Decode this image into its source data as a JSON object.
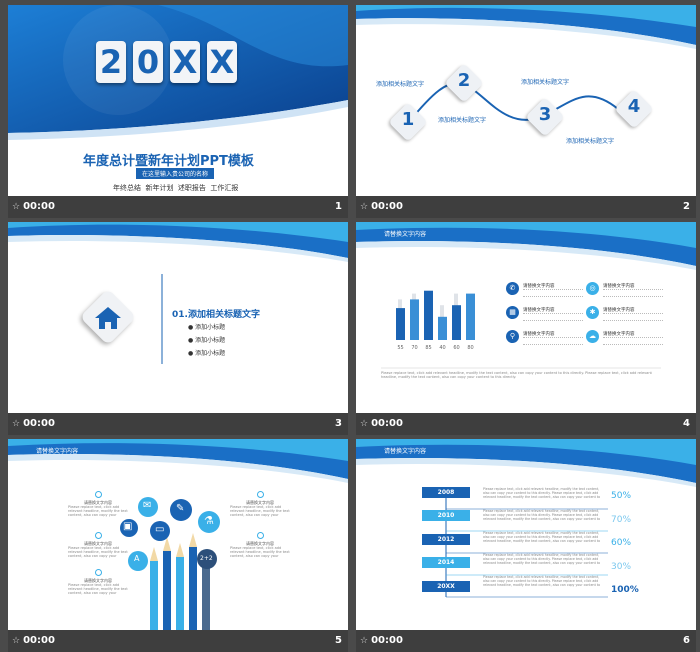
{
  "slides": [
    {
      "number": "1",
      "time": "00:00"
    },
    {
      "number": "2",
      "time": "00:00"
    },
    {
      "number": "3",
      "time": "00:00"
    },
    {
      "number": "4",
      "time": "00:00"
    },
    {
      "number": "5",
      "time": "00:00"
    },
    {
      "number": "6",
      "time": "00:00"
    }
  ],
  "s1": {
    "digits": [
      "2",
      "0",
      "X",
      "X"
    ],
    "title": "年度总计暨新年计划PPT模板",
    "company": "在这里输入贵公司的名称",
    "subtitle": "年终总结  新年计划  述职报告  工作汇报"
  },
  "s2": {
    "steps": [
      "1",
      "2",
      "3",
      "4"
    ],
    "labels": [
      "添加相关标题文字",
      "添加相关标题文字",
      "添加相关标题文字",
      "添加相关标题文字"
    ]
  },
  "s3": {
    "heading": "01.添加相关标题文字",
    "items": [
      "添加小标题",
      "添加小标题",
      "添加小标题"
    ]
  },
  "s4": {
    "title": "请替换文字内容",
    "item_label": "请替换文字内容",
    "footer": "Please replace text, click add relevant headline, modify the text content, also can copy your content to this directly. Please replace text, click add relevant headline, modify the text content, also can copy your content to this directly.",
    "chart_data": {
      "type": "bar",
      "categories": [
        "55",
        "70",
        "85",
        "40",
        "60",
        "80"
      ],
      "series": [
        {
          "values": [
            55,
            70,
            85,
            40,
            60,
            80
          ]
        },
        {
          "values": [
            70,
            80,
            70,
            60,
            80,
            70
          ]
        }
      ]
    }
  },
  "s5": {
    "title": "请替换文字内容",
    "item_label": "请替换文字内容",
    "body": "Please replace text, click add relevant headline, modify the text content, also can copy your content to this directly."
  },
  "s6": {
    "title": "请替换文字内容",
    "years": [
      "2008",
      "2010",
      "2012",
      "2014",
      "20XX"
    ],
    "percents": [
      "50%",
      "70%",
      "60%",
      "30%",
      "100%"
    ],
    "body": "Please replace text, click add relevant headline, modify the text content, also can copy your content to this directly. Please replace text, click add relevant headline, modify the text content, also can copy your content to this directly."
  },
  "colors": {
    "primary": "#1a63b3",
    "light": "#3ab0e8",
    "dark": "#0c3f86"
  }
}
